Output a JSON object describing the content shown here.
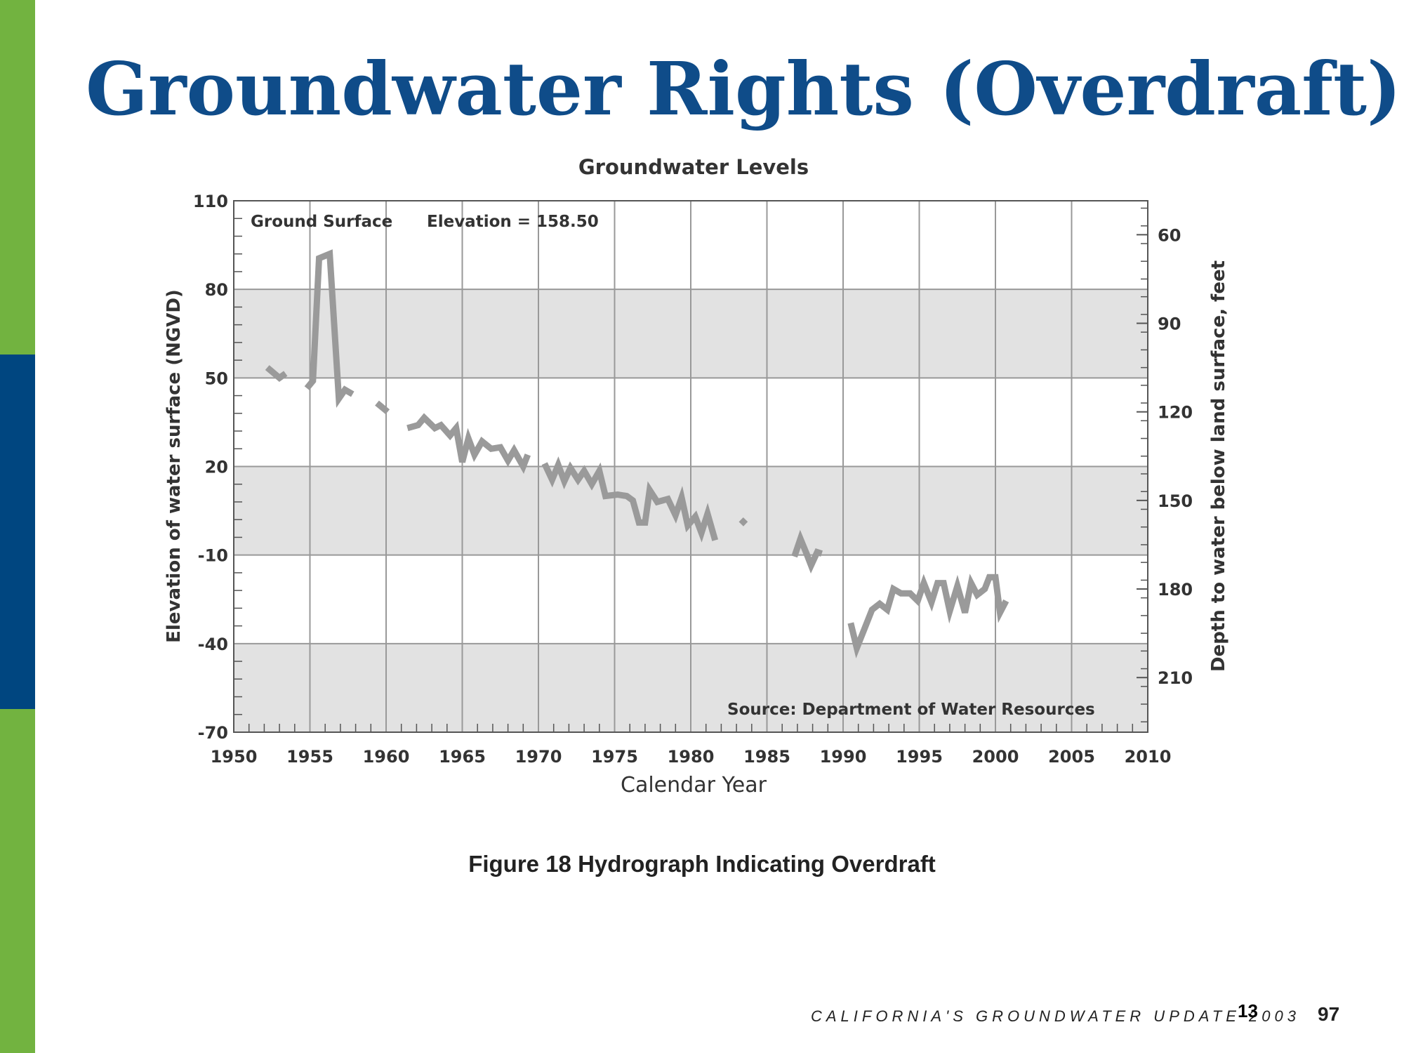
{
  "slide": {
    "title": "Groundwater Rights (Overdraft)",
    "number": "13",
    "accent_green": "#72b340",
    "accent_blue": "#004680",
    "title_color": "#0f4c89"
  },
  "figure": {
    "caption": "Figure 18  Hydrograph Indicating Overdraft",
    "footer_text": "CALIFORNIA'S  GROUNDWATER  UPDATE 2003",
    "footer_page": "97"
  },
  "chart_data": {
    "type": "line",
    "title": "Groundwater Levels",
    "xlabel": "Calendar Year",
    "ylabel": "Elevation of water surface (NGVD)",
    "y2label": "Depth to water below land surface, feet",
    "xlim": [
      1950,
      2010
    ],
    "ylim": [
      -70,
      110
    ],
    "y2lim": [
      228.5,
      48.5
    ],
    "x_ticks": [
      1950,
      1955,
      1960,
      1965,
      1970,
      1975,
      1980,
      1985,
      1990,
      1995,
      2000,
      2005,
      2010
    ],
    "y_ticks": [
      110,
      80,
      50,
      20,
      -10,
      -40,
      -70
    ],
    "y2_ticks": [
      60,
      90,
      120,
      150,
      180,
      210
    ],
    "grid": true,
    "shaded_bands": [
      [
        50,
        80
      ],
      [
        -10,
        20
      ],
      [
        -70,
        -40
      ]
    ],
    "annotations": {
      "ground_surface": "Ground Surface",
      "elevation": "Elevation = 158.50",
      "source": "Source: Department of Water Resources"
    },
    "series_color": "#9a9a9a",
    "segments": [
      [
        [
          1952.2,
          53.5
        ],
        [
          1953.0,
          50.0
        ],
        [
          1953.4,
          51.5
        ]
      ],
      [
        [
          1954.8,
          46.5
        ],
        [
          1955.2,
          49.0
        ],
        [
          1955.6,
          90.5
        ],
        [
          1956.3,
          92.0
        ],
        [
          1956.9,
          43.0
        ],
        [
          1957.3,
          46.0
        ],
        [
          1957.8,
          44.5
        ]
      ],
      [
        [
          1959.4,
          41.5
        ],
        [
          1960.1,
          38.5
        ]
      ],
      [
        [
          1961.4,
          33.0
        ],
        [
          1962.1,
          34.0
        ],
        [
          1962.5,
          36.5
        ],
        [
          1963.2,
          33.0
        ],
        [
          1963.6,
          34.0
        ],
        [
          1964.2,
          30.5
        ],
        [
          1964.6,
          33.0
        ],
        [
          1965.0,
          21.5
        ],
        [
          1965.4,
          29.5
        ],
        [
          1965.8,
          24.0
        ],
        [
          1966.3,
          28.5
        ],
        [
          1966.9,
          26.0
        ],
        [
          1967.5,
          26.5
        ],
        [
          1968.0,
          22.0
        ],
        [
          1968.4,
          25.5
        ],
        [
          1969.0,
          20.0
        ],
        [
          1969.3,
          24.0
        ]
      ],
      [
        [
          1970.4,
          21.0
        ],
        [
          1970.9,
          15.5
        ],
        [
          1971.3,
          20.5
        ],
        [
          1971.7,
          15.0
        ],
        [
          1972.1,
          19.5
        ],
        [
          1972.6,
          15.5
        ],
        [
          1973.0,
          18.5
        ],
        [
          1973.5,
          14.0
        ],
        [
          1974.0,
          18.5
        ],
        [
          1974.4,
          10.0
        ],
        [
          1975.2,
          10.5
        ],
        [
          1975.8,
          10.0
        ],
        [
          1976.2,
          8.5
        ],
        [
          1976.6,
          1.0
        ],
        [
          1977.0,
          1.0
        ],
        [
          1977.3,
          12.0
        ],
        [
          1977.8,
          8.0
        ],
        [
          1978.5,
          9.0
        ],
        [
          1979.0,
          3.5
        ],
        [
          1979.4,
          9.5
        ],
        [
          1979.8,
          0.0
        ],
        [
          1980.3,
          3.0
        ],
        [
          1980.7,
          -2.5
        ],
        [
          1981.1,
          4.0
        ],
        [
          1981.6,
          -5.0
        ]
      ],
      [
        [
          1983.3,
          2.0
        ],
        [
          1983.6,
          0.5
        ]
      ],
      [
        [
          1986.8,
          -10.5
        ],
        [
          1987.2,
          -4.5
        ],
        [
          1987.6,
          -9.5
        ],
        [
          1987.9,
          -13.5
        ],
        [
          1988.3,
          -9.0
        ],
        [
          1988.6,
          -9.5
        ]
      ],
      [
        [
          1990.5,
          -33.0
        ],
        [
          1990.9,
          -41.5
        ],
        [
          1991.4,
          -35.0
        ],
        [
          1991.9,
          -28.5
        ],
        [
          1992.4,
          -26.5
        ],
        [
          1992.9,
          -28.5
        ],
        [
          1993.3,
          -21.5
        ],
        [
          1993.8,
          -23.0
        ],
        [
          1994.4,
          -23.0
        ],
        [
          1994.9,
          -25.5
        ],
        [
          1995.3,
          -19.5
        ],
        [
          1995.8,
          -26.0
        ],
        [
          1996.2,
          -19.5
        ],
        [
          1996.6,
          -19.5
        ],
        [
          1997.0,
          -29.0
        ],
        [
          1997.5,
          -20.5
        ],
        [
          1998.0,
          -29.5
        ],
        [
          1998.4,
          -19.5
        ],
        [
          1998.8,
          -23.5
        ],
        [
          1999.3,
          -21.5
        ],
        [
          1999.6,
          -17.5
        ],
        [
          2000.0,
          -17.5
        ],
        [
          2000.3,
          -29.5
        ],
        [
          2000.7,
          -25.5
        ]
      ]
    ]
  }
}
